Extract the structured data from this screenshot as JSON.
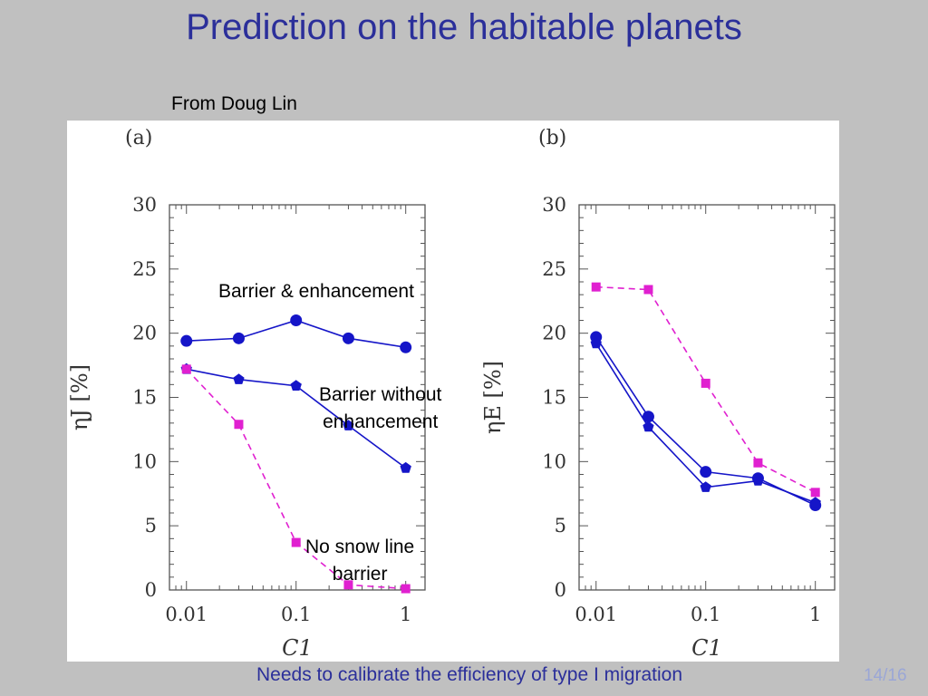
{
  "slide": {
    "title": "Prediction on the habitable planets",
    "source": "From Doug Lin",
    "footer": "Needs to calibrate the efficiency of type I migration",
    "page": "14/16"
  },
  "annotations": {
    "barrier_enhancement": "Barrier & enhancement",
    "barrier_no_enh_1": "Barrier without",
    "barrier_no_enh_2": "enhancement",
    "no_snow_1": "No snow line",
    "no_snow_2": "barrier"
  },
  "colors": {
    "blue": "#1515c8",
    "magenta": "#e020d0",
    "title": "#2b2f9a"
  },
  "chart_data": [
    {
      "type": "line",
      "panel": "(a)",
      "xlabel": "C1",
      "ylabel": "ηJ [%]",
      "xscale": "log",
      "xlim": [
        0.007,
        1.5
      ],
      "ylim": [
        0,
        30
      ],
      "xticks": [
        0.01,
        0.1,
        1
      ],
      "xticklabels": [
        "0.01",
        "0.1",
        "1"
      ],
      "yticks": [
        0,
        5,
        10,
        15,
        20,
        25,
        30
      ],
      "x": [
        0.01,
        0.03,
        0.1,
        0.3,
        1
      ],
      "series": [
        {
          "key": "a-enh",
          "values": [
            19.4,
            19.6,
            21.0,
            19.6,
            18.9
          ],
          "color": "#1515c8",
          "marker": "circle",
          "dash": false
        },
        {
          "key": "a-barrier",
          "values": [
            17.2,
            16.4,
            15.9,
            12.8,
            9.5
          ],
          "color": "#1515c8",
          "marker": "pentagon",
          "dash": false
        },
        {
          "key": "a-nosnow",
          "values": [
            17.2,
            12.9,
            3.7,
            0.4,
            0.1
          ],
          "color": "#e020d0",
          "marker": "square",
          "dash": true
        }
      ]
    },
    {
      "type": "line",
      "panel": "(b)",
      "xlabel": "C1",
      "ylabel": "ηE [%]",
      "xscale": "log",
      "xlim": [
        0.007,
        1.5
      ],
      "ylim": [
        0,
        30
      ],
      "xticks": [
        0.01,
        0.1,
        1
      ],
      "xticklabels": [
        "0.01",
        "0.1",
        "1"
      ],
      "yticks": [
        0,
        5,
        10,
        15,
        20,
        25,
        30
      ],
      "x": [
        0.01,
        0.03,
        0.1,
        0.3,
        1
      ],
      "series": [
        {
          "key": "b-enh",
          "values": [
            19.7,
            13.5,
            9.2,
            8.7,
            6.6
          ],
          "color": "#1515c8",
          "marker": "circle",
          "dash": false
        },
        {
          "key": "b-barrier",
          "values": [
            19.2,
            12.7,
            8.0,
            8.5,
            6.8
          ],
          "color": "#1515c8",
          "marker": "pentagon",
          "dash": false
        },
        {
          "key": "b-nosnow",
          "values": [
            23.6,
            23.4,
            16.1,
            9.9,
            7.6
          ],
          "color": "#e020d0",
          "marker": "square",
          "dash": true
        }
      ]
    }
  ]
}
